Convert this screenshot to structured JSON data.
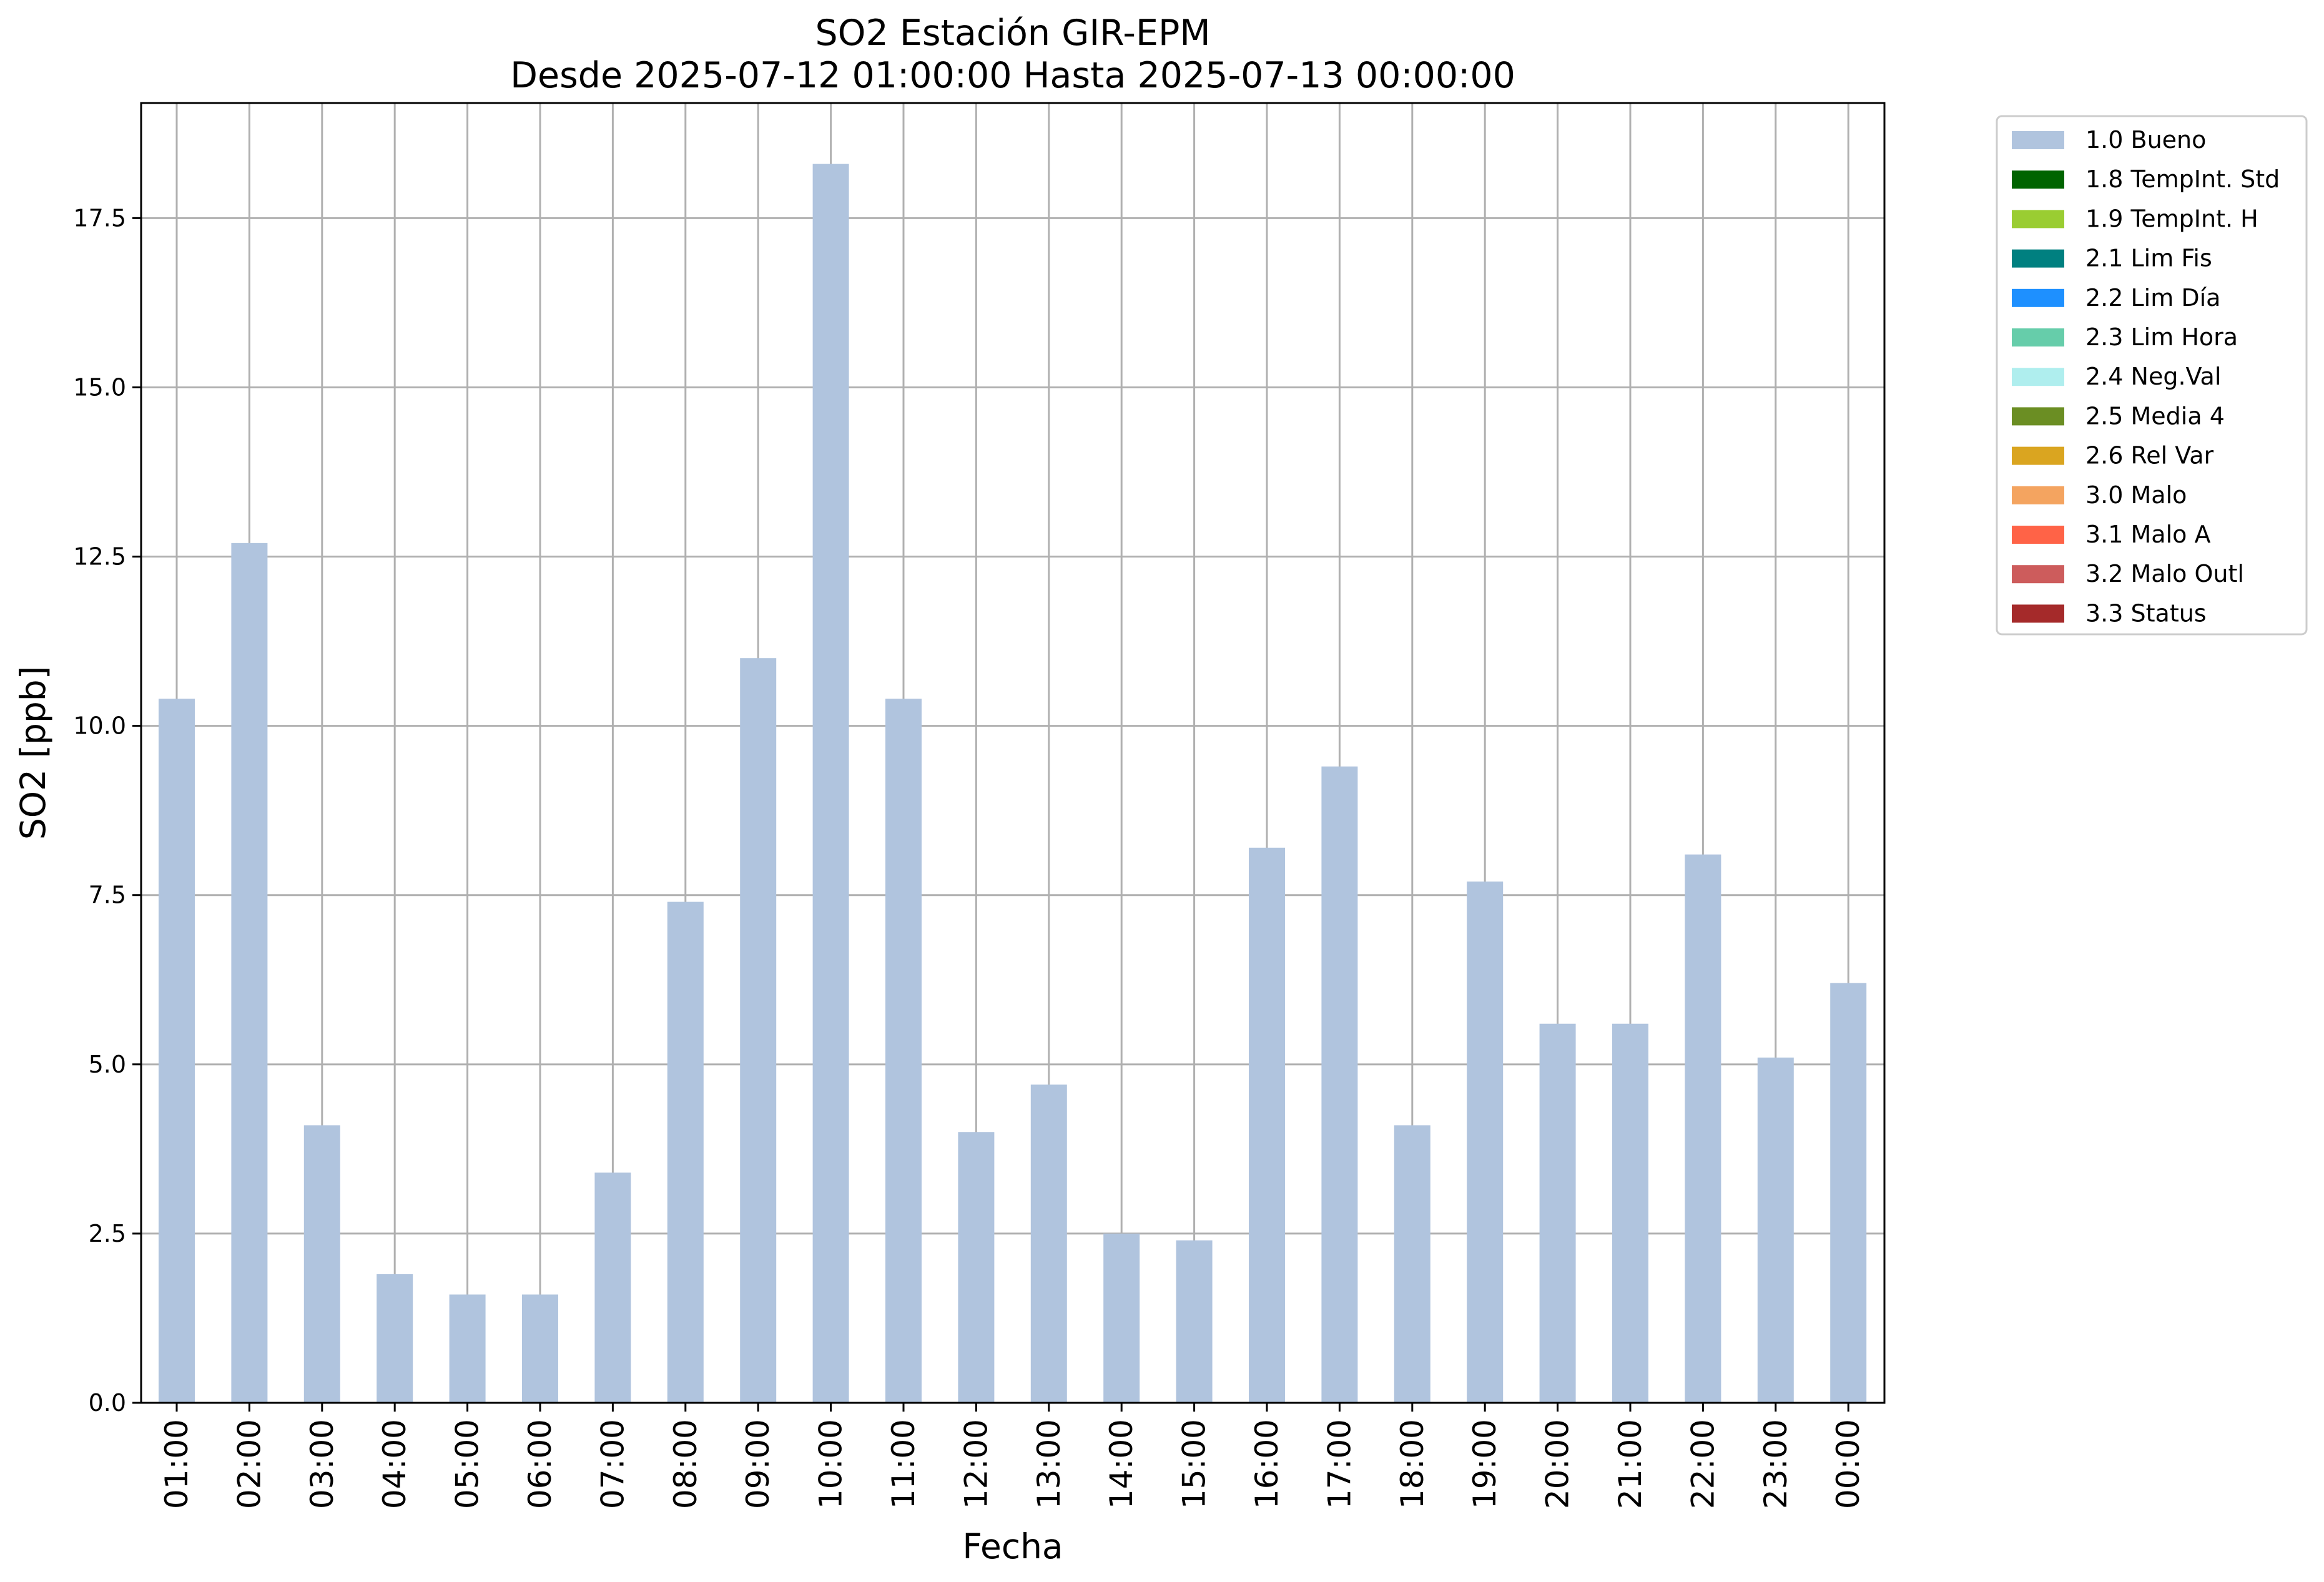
{
  "chart_data": {
    "type": "bar",
    "title": "SO2 Estación GIR-EPM",
    "subtitle": "Desde 2025-07-12 01:00:00 Hasta 2025-07-13 00:00:00",
    "xlabel": "Fecha",
    "ylabel": "SO2 [ppb]",
    "ylim": [
      0,
      19.2
    ],
    "yticks": [
      0.0,
      2.5,
      5.0,
      7.5,
      10.0,
      12.5,
      15.0,
      17.5
    ],
    "ytick_labels": [
      "0.0",
      "2.5",
      "5.0",
      "7.5",
      "10.0",
      "12.5",
      "15.0",
      "17.5"
    ],
    "grid": true,
    "legend_position": "outside-right-top",
    "categories": [
      "01:00",
      "02:00",
      "03:00",
      "04:00",
      "05:00",
      "06:00",
      "07:00",
      "08:00",
      "09:00",
      "10:00",
      "11:00",
      "12:00",
      "13:00",
      "14:00",
      "15:00",
      "16:00",
      "17:00",
      "18:00",
      "19:00",
      "20:00",
      "21:00",
      "22:00",
      "23:00",
      "00:00"
    ],
    "series": [
      {
        "name": "1.0 Bueno",
        "color": "#b0c4de",
        "values": [
          10.4,
          12.7,
          4.1,
          1.9,
          1.6,
          1.6,
          3.4,
          7.4,
          11.0,
          18.3,
          10.4,
          4.0,
          4.7,
          2.5,
          2.4,
          8.2,
          9.4,
          4.1,
          7.7,
          5.6,
          5.6,
          8.1,
          5.1,
          6.2
        ]
      }
    ],
    "legend": [
      {
        "label": "1.0 Bueno",
        "color": "#b0c4de"
      },
      {
        "label": "1.8 TempInt. Std",
        "color": "#006400"
      },
      {
        "label": "1.9 TempInt. H",
        "color": "#9acd32"
      },
      {
        "label": "2.1 Lim Fis",
        "color": "#008080"
      },
      {
        "label": "2.2 Lim Día",
        "color": "#1e90ff"
      },
      {
        "label": "2.3 Lim Hora",
        "color": "#66cdaa"
      },
      {
        "label": "2.4 Neg.Val",
        "color": "#afeeee"
      },
      {
        "label": "2.5 Media 4",
        "color": "#6b8e23"
      },
      {
        "label": "2.6 Rel Var",
        "color": "#daa520"
      },
      {
        "label": "3.0 Malo",
        "color": "#f4a460"
      },
      {
        "label": "3.1 Malo A",
        "color": "#ff6347"
      },
      {
        "label": "3.2 Malo Outl",
        "color": "#cd5c5c"
      },
      {
        "label": "3.3 Status",
        "color": "#a52a2a"
      }
    ]
  }
}
